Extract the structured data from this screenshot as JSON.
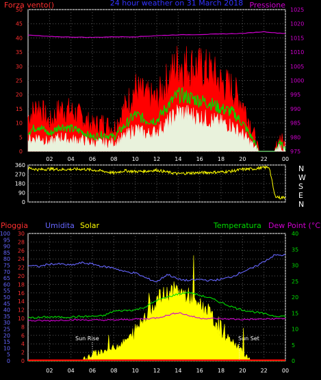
{
  "chart_data": [
    {
      "type": "line",
      "title": "24 hour weather on 31 March 2018",
      "left_label": "Forza vento()",
      "right_label": "Pressione",
      "x_ticks": [
        "02",
        "04",
        "06",
        "08",
        "10",
        "12",
        "14",
        "16",
        "18",
        "20",
        "22",
        "00"
      ],
      "x_range": [
        0,
        24
      ],
      "ylim_left": [
        0,
        50
      ],
      "y_ticks_left": [
        0,
        5,
        10,
        15,
        20,
        25,
        30,
        35,
        40,
        45,
        50
      ],
      "ylim_right": [
        975,
        1025
      ],
      "y_ticks_right": [
        975,
        980,
        985,
        990,
        995,
        1000,
        1005,
        1010,
        1015,
        1020,
        1025
      ],
      "grid": true,
      "series": [
        {
          "x": [
            0,
            1,
            2,
            3,
            4,
            5,
            6,
            7,
            8,
            9,
            10,
            11,
            12,
            13,
            14,
            15,
            16,
            17,
            18,
            19,
            20,
            21,
            21.5,
            22,
            22.5,
            23,
            23.5,
            24
          ],
          "values": [
            12,
            16,
            10,
            15,
            14,
            12,
            9,
            10,
            8,
            15,
            22,
            19,
            18,
            25,
            31,
            30,
            29,
            28,
            24,
            22,
            17,
            7,
            0,
            0,
            0,
            0,
            5,
            2
          ]
        },
        {
          "x": [
            0,
            1,
            2,
            3,
            4,
            5,
            6,
            7,
            8,
            9,
            10,
            11,
            12,
            13,
            14,
            15,
            16,
            17,
            18,
            19,
            20,
            21,
            21.5,
            22,
            22.5,
            23,
            23.5,
            24
          ],
          "values": [
            7,
            9,
            6,
            9,
            8,
            7,
            5,
            6,
            5,
            9,
            13,
            11,
            11,
            16,
            20,
            19,
            18,
            17,
            15,
            14,
            10,
            4,
            0,
            0,
            0,
            0,
            3,
            1
          ]
        },
        {
          "x": [
            0,
            1,
            2,
            3,
            4,
            5,
            6,
            7,
            8,
            9,
            10,
            11,
            12,
            13,
            14,
            15,
            16,
            17,
            18,
            19,
            20,
            21,
            21.5,
            22,
            22.5,
            23,
            23.5,
            24
          ],
          "values": [
            4,
            5,
            3,
            5,
            4,
            4,
            3,
            3,
            3,
            5,
            8,
            6,
            7,
            10,
            14,
            13,
            12,
            11,
            10,
            9,
            6,
            2,
            0,
            0,
            0,
            0,
            2,
            0
          ]
        },
        {
          "x": [
            0,
            2,
            4,
            6,
            8,
            10,
            12,
            14,
            16,
            18,
            20,
            22,
            23,
            24
          ],
          "values": [
            1016.0,
            1015.5,
            1015.3,
            1015.2,
            1015.4,
            1015.4,
            1015.8,
            1016.1,
            1016.2,
            1016.4,
            1016.6,
            1017.2,
            1016.8,
            1016.6
          ]
        }
      ],
      "colors": {
        "gust": "#ff0000",
        "average": "#00dd00",
        "min": "#e8ffe8",
        "pressure": "#d000d0",
        "title": "#3333ff"
      }
    },
    {
      "type": "line",
      "x_ticks": [
        "02",
        "04",
        "06",
        "08",
        "10",
        "12",
        "14",
        "16",
        "18",
        "20",
        "22",
        "00"
      ],
      "x_range": [
        0,
        24
      ],
      "ylim": [
        0,
        360
      ],
      "y_ticks": [
        0,
        90,
        180,
        270,
        360
      ],
      "compass": [
        "N",
        "W",
        "S",
        "E",
        "N"
      ],
      "series": [
        {
          "x": [
            0,
            1,
            2,
            3,
            4,
            5,
            6,
            7,
            8,
            9,
            10,
            11,
            12,
            13,
            14,
            15,
            16,
            17,
            18,
            19,
            20,
            21,
            22,
            22.5,
            23,
            23.5,
            24
          ],
          "values": [
            330,
            315,
            322,
            316,
            318,
            320,
            312,
            300,
            282,
            305,
            296,
            300,
            310,
            290,
            275,
            282,
            285,
            288,
            292,
            300,
            318,
            322,
            335,
            340,
            62,
            40,
            48
          ]
        }
      ],
      "colors": {
        "direction": "#ffff00"
      }
    },
    {
      "type": "line",
      "labels": {
        "rain": "Pioggia",
        "humidity": "Umidita",
        "solar": "Solar",
        "temperature": "Temperatura",
        "dewpoint": "Dew Point (°C)",
        "sunrise": "Sun Rise",
        "sunset": "Sun Set"
      },
      "x_ticks": [
        "02",
        "04",
        "06",
        "08",
        "10",
        "12",
        "14",
        "16",
        "18",
        "20",
        "22",
        "00"
      ],
      "x_range": [
        0,
        24
      ],
      "ylim_rain": [
        0,
        30
      ],
      "y_ticks_rain": [
        0,
        2,
        4,
        6,
        8,
        10,
        12,
        14,
        16,
        18,
        20,
        22,
        24,
        26,
        28,
        30
      ],
      "ylim_humidity": [
        0,
        100
      ],
      "y_ticks_humidity": [
        0,
        5,
        10,
        15,
        20,
        25,
        30,
        35,
        40,
        45,
        50,
        55,
        60,
        65,
        70,
        75,
        80,
        85,
        90,
        95,
        100
      ],
      "ylim_temperature": [
        0,
        40
      ],
      "y_ticks_temperature": [
        0,
        5,
        10,
        15,
        20,
        25,
        30,
        35,
        40
      ],
      "series": [
        {
          "x": [
            0,
            1,
            2,
            3,
            4,
            5,
            6,
            7,
            8,
            9,
            10,
            11,
            12,
            13,
            14,
            15,
            16,
            17,
            18,
            19,
            20,
            21,
            22,
            23,
            24
          ],
          "values": [
            75,
            74,
            76,
            76,
            75,
            77,
            76,
            74,
            73,
            70,
            69,
            65,
            62,
            68,
            64,
            63,
            64,
            63,
            64,
            66,
            70,
            73,
            78,
            83,
            83
          ]
        },
        {
          "x": [
            0,
            1,
            2,
            3,
            4,
            5,
            6,
            7,
            8,
            9,
            10,
            11,
            12,
            13,
            14,
            15,
            16,
            17,
            18,
            19,
            20,
            21,
            22,
            23,
            24
          ],
          "values": [
            13.5,
            13.6,
            13.8,
            13.7,
            13.8,
            13.9,
            14.0,
            14.1,
            15.6,
            15.8,
            16.0,
            17.0,
            19.0,
            20.0,
            21.0,
            21.5,
            20.6,
            19.7,
            18.3,
            17.0,
            16.0,
            15.4,
            14.8,
            14.1,
            14.0
          ]
        },
        {
          "x": [
            0,
            2,
            4,
            6,
            8,
            10,
            11,
            12,
            13,
            14,
            15,
            16,
            18,
            20,
            22,
            24
          ],
          "values": [
            12.6,
            12.6,
            12.9,
            12.8,
            12.8,
            13.1,
            13.2,
            13.5,
            14.3,
            15.2,
            14.2,
            13.4,
            13.2,
            13.0,
            13.1,
            13.3
          ]
        },
        {
          "x": [
            0,
            4,
            5,
            5.5,
            6,
            7,
            8,
            9,
            10,
            11,
            12,
            13,
            13.5,
            14,
            15,
            16,
            17,
            18,
            19,
            20,
            20.5,
            21,
            24
          ],
          "values": [
            0,
            0,
            0,
            1,
            2,
            3,
            4,
            6,
            9,
            15,
            19,
            21,
            22,
            22,
            20,
            18,
            14,
            10,
            6,
            3,
            1,
            0,
            0
          ]
        },
        {
          "x": [
            0,
            24
          ],
          "values": [
            0,
            0
          ]
        }
      ],
      "colors": {
        "rain": "#ff0000",
        "humidity": "#6666ff",
        "solar": "#ffff00",
        "temperature": "#00dd00",
        "dewpoint": "#d000d0"
      }
    }
  ]
}
